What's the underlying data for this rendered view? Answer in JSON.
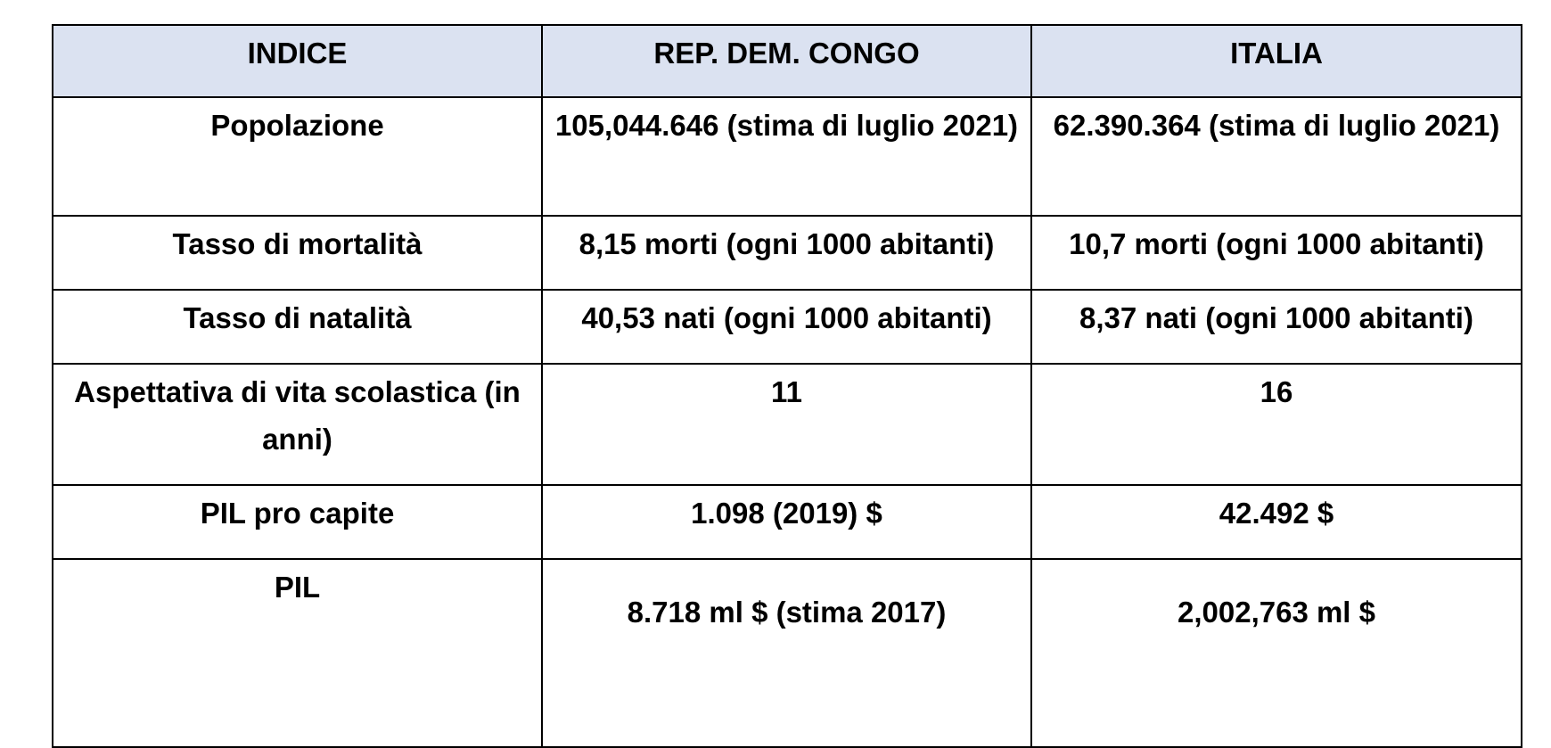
{
  "table": {
    "headers": [
      "INDICE",
      "REP. DEM. CONGO",
      "ITALIA"
    ],
    "rows": [
      {
        "indice": "Popolazione",
        "congo": "105,044.646 (stima di luglio 2021)",
        "italia": "62.390.364 (stima di luglio 2021)"
      },
      {
        "indice": "Tasso di mortalità",
        "congo": "8,15 morti (ogni 1000 abitanti)",
        "italia": "10,7 morti (ogni 1000 abitanti)"
      },
      {
        "indice": "Tasso di natalità",
        "congo": "40,53 nati (ogni 1000 abitanti)",
        "italia": "8,37 nati (ogni 1000 abitanti)"
      },
      {
        "indice": "Aspettativa di vita scolastica (in anni)",
        "congo": "11",
        "italia": "16"
      },
      {
        "indice": "PIL pro capite",
        "congo": "1.098 (2019) $",
        "italia": "42.492 $"
      },
      {
        "indice": "PIL",
        "congo": "8.718 ml $ (stima 2017)",
        "italia": "2,002,763 ml $"
      }
    ]
  },
  "colors": {
    "header_background": "#dbe2f1",
    "border": "#000000",
    "text": "#000000"
  }
}
